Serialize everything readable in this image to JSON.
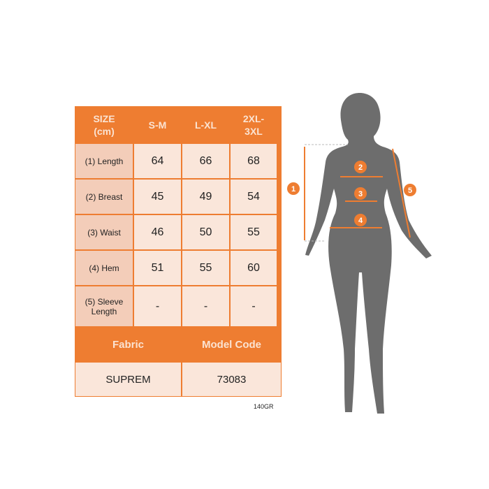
{
  "table": {
    "header": [
      "SIZE\n(cm)",
      "S-M",
      "L-XL",
      "2XL-\n3XL"
    ],
    "rows": [
      {
        "label": "(1) Length",
        "values": [
          "64",
          "66",
          "68"
        ]
      },
      {
        "label": "(2) Breast",
        "values": [
          "45",
          "49",
          "54"
        ]
      },
      {
        "label": "(3) Waist",
        "values": [
          "46",
          "50",
          "55"
        ]
      },
      {
        "label": "(4) Hem",
        "values": [
          "51",
          "55",
          "60"
        ]
      },
      {
        "label": "(5) Sleeve Length",
        "values": [
          "-",
          "-",
          "-"
        ]
      }
    ],
    "footer_headers": [
      "Fabric",
      "Model Code"
    ],
    "footer_values": [
      "SUPREM",
      "73083"
    ]
  },
  "note": "140GR",
  "figure": {
    "markers": [
      "1",
      "2",
      "3",
      "4",
      "5"
    ],
    "accent": "#ee7d31",
    "silhouette": "#6d6d6d"
  }
}
